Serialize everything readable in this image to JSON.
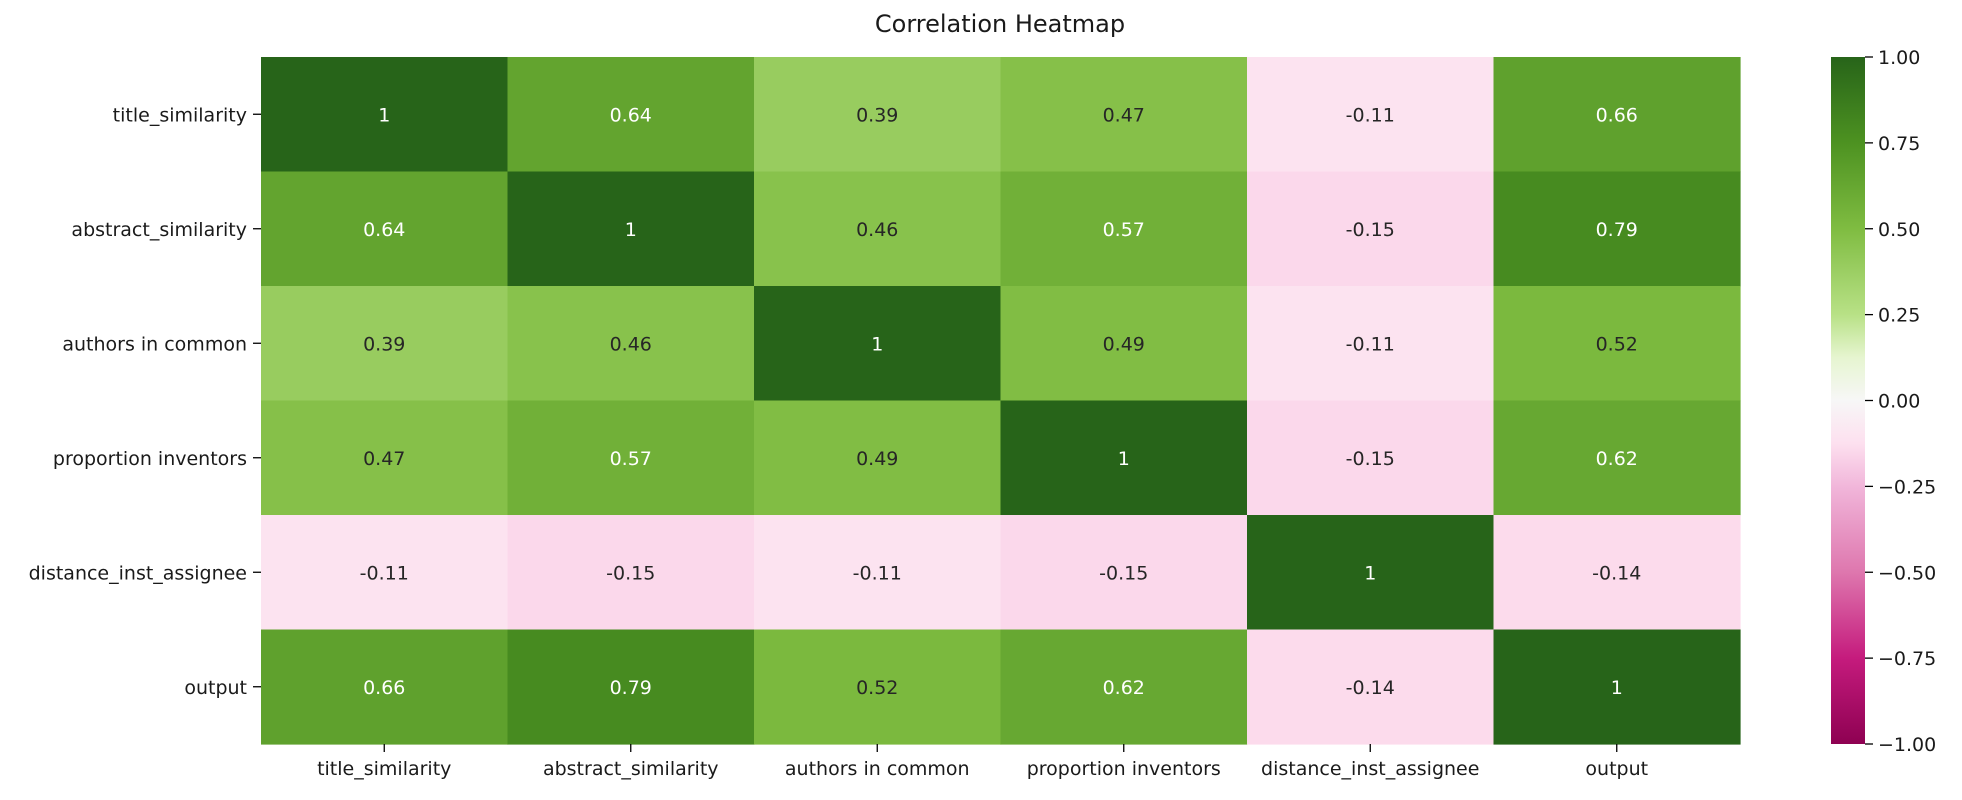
{
  "chart_data": {
    "type": "heatmap",
    "title": "Correlation Heatmap",
    "xlabel": "",
    "ylabel": "",
    "row_labels": [
      "title_similarity",
      "abstract_similarity",
      "authors in common",
      "proportion inventors",
      "distance_inst_assignee",
      "output"
    ],
    "col_labels": [
      "title_similarity",
      "abstract_similarity",
      "authors in common",
      "proportion inventors",
      "distance_inst_assignee",
      "output"
    ],
    "values": [
      [
        1,
        0.64,
        0.39,
        0.47,
        -0.11,
        0.66
      ],
      [
        0.64,
        1,
        0.46,
        0.57,
        -0.15,
        0.79
      ],
      [
        0.39,
        0.46,
        1,
        0.49,
        -0.11,
        0.52
      ],
      [
        0.47,
        0.57,
        0.49,
        1,
        -0.15,
        0.62
      ],
      [
        -0.11,
        -0.15,
        -0.11,
        -0.15,
        1,
        -0.14
      ],
      [
        0.66,
        0.79,
        0.52,
        0.62,
        -0.14,
        1
      ]
    ],
    "cell_labels": [
      [
        "1",
        "0.64",
        "0.39",
        "0.47",
        "-0.11",
        "0.66"
      ],
      [
        "0.64",
        "1",
        "0.46",
        "0.57",
        "-0.15",
        "0.79"
      ],
      [
        "0.39",
        "0.46",
        "1",
        "0.49",
        "-0.11",
        "0.52"
      ],
      [
        "0.47",
        "0.57",
        "0.49",
        "1",
        "-0.15",
        "0.62"
      ],
      [
        "-0.11",
        "-0.15",
        "-0.11",
        "-0.15",
        "1",
        "-0.14"
      ],
      [
        "0.66",
        "0.79",
        "0.52",
        "0.62",
        "-0.14",
        "1"
      ]
    ],
    "colormap": "PiYG",
    "vmin": -1,
    "vmax": 1,
    "colorbar_ticks": [
      "1.00",
      "0.75",
      "0.50",
      "0.25",
      "0.00",
      "−0.25",
      "−0.50",
      "−0.75",
      "−1.00"
    ],
    "colorbar_tick_values": [
      1,
      0.75,
      0.5,
      0.25,
      0,
      -0.25,
      -0.5,
      -0.75,
      -1
    ],
    "colors": {
      "1.00": "#276419",
      "0.75": "#4d9221",
      "0.50": "#7fbc41",
      "0.25": "#b8e186",
      "0.125": "#e6f5d0",
      "0.00": "#f7f7f7",
      "-0.125": "#fde0ef",
      "-0.25": "#f1b6da",
      "-0.50": "#de77ae",
      "-0.75": "#c51b7d",
      "-1.00": "#8e0152"
    }
  }
}
